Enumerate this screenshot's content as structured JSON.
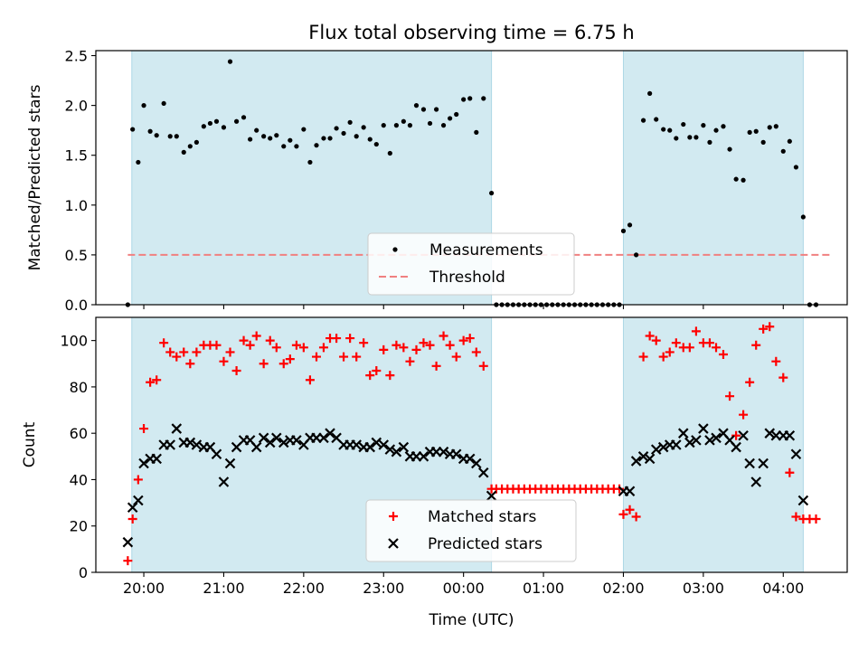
{
  "chart_data": {
    "title": "Flux total observing time = 6.75 h",
    "xlabel": "Time (UTC)",
    "x_unit": "hours UTC, continuing past midnight (24.0 = 00:00 next day)",
    "xlim": [
      19.4,
      28.8
    ],
    "xticks": [
      {
        "value": 20,
        "label": "20:00"
      },
      {
        "value": 21,
        "label": "21:00"
      },
      {
        "value": 22,
        "label": "22:00"
      },
      {
        "value": 23,
        "label": "23:00"
      },
      {
        "value": 24,
        "label": "00:00"
      },
      {
        "value": 25,
        "label": "01:00"
      },
      {
        "value": 26,
        "label": "02:00"
      },
      {
        "value": 27,
        "label": "03:00"
      },
      {
        "value": 28,
        "label": "04:00"
      }
    ],
    "observing_windows": [
      [
        19.85,
        24.35
      ],
      [
        26.0,
        28.25
      ]
    ],
    "window_color": "#add8e6",
    "panels": [
      {
        "type": "scatter",
        "ylabel": "Matched/Predicted stars",
        "ylim": [
          0,
          2.55
        ],
        "yticks": [
          0.0,
          0.5,
          1.0,
          1.5,
          2.0,
          2.5
        ],
        "ytick_labels": [
          "0.0",
          "0.5",
          "1.0",
          "1.5",
          "2.0",
          "2.5"
        ],
        "legend_position": "lower center",
        "threshold": {
          "name": "Threshold",
          "value": 0.5,
          "x_range": [
            19.8,
            28.6
          ],
          "color": "#f08080",
          "style": "dashed"
        },
        "series": [
          {
            "name": "Measurements",
            "marker": "dot",
            "color": "#000000",
            "x": [
              19.8,
              19.86,
              19.93,
              20.0,
              20.08,
              20.16,
              20.25,
              20.33,
              20.41,
              20.5,
              20.58,
              20.66,
              20.75,
              20.83,
              20.91,
              21.0,
              21.08,
              21.16,
              21.25,
              21.33,
              21.41,
              21.5,
              21.58,
              21.66,
              21.75,
              21.83,
              21.91,
              22.0,
              22.08,
              22.16,
              22.25,
              22.33,
              22.41,
              22.5,
              22.58,
              22.66,
              22.75,
              22.83,
              22.91,
              23.0,
              23.08,
              23.16,
              23.25,
              23.33,
              23.41,
              23.5,
              23.58,
              23.66,
              23.75,
              23.83,
              23.91,
              24.0,
              24.08,
              24.16,
              24.25,
              24.35,
              24.41,
              24.48,
              24.55,
              24.62,
              24.69,
              24.76,
              24.83,
              24.9,
              24.97,
              25.04,
              25.11,
              25.18,
              25.25,
              25.32,
              25.39,
              25.46,
              25.53,
              25.6,
              25.67,
              25.74,
              25.81,
              25.88,
              25.95,
              26.0,
              26.08,
              26.16,
              26.25,
              26.33,
              26.41,
              26.5,
              26.58,
              26.66,
              26.75,
              26.83,
              26.91,
              27.0,
              27.08,
              27.16,
              27.25,
              27.33,
              27.41,
              27.5,
              27.58,
              27.66,
              27.75,
              27.83,
              27.91,
              28.0,
              28.08,
              28.16,
              28.25,
              28.33,
              28.41
            ],
            "y": [
              0,
              1.76,
              1.43,
              2.0,
              1.74,
              1.7,
              2.02,
              1.69,
              1.69,
              1.53,
              1.59,
              1.63,
              1.79,
              1.82,
              1.84,
              1.78,
              2.44,
              1.84,
              1.88,
              1.66,
              1.75,
              1.69,
              1.67,
              1.7,
              1.59,
              1.65,
              1.59,
              1.76,
              1.43,
              1.6,
              1.67,
              1.67,
              1.77,
              1.72,
              1.83,
              1.69,
              1.78,
              1.66,
              1.61,
              1.8,
              1.52,
              1.8,
              1.84,
              1.8,
              2.0,
              1.96,
              1.82,
              1.96,
              1.8,
              1.87,
              1.91,
              2.06,
              2.07,
              1.73,
              2.07,
              1.12,
              0,
              0,
              0,
              0,
              0,
              0,
              0,
              0,
              0,
              0,
              0,
              0,
              0,
              0,
              0,
              0,
              0,
              0,
              0,
              0,
              0,
              0,
              0,
              0.74,
              0.8,
              0.5,
              1.85,
              2.12,
              1.86,
              1.76,
              1.75,
              1.67,
              1.81,
              1.68,
              1.68,
              1.8,
              1.63,
              1.75,
              1.79,
              1.56,
              1.26,
              1.25,
              1.73,
              1.74,
              1.63,
              1.78,
              1.79,
              1.54,
              1.64,
              1.38,
              0.88,
              0,
              0
            ]
          }
        ]
      },
      {
        "type": "scatter",
        "ylabel": "Count",
        "ylim": [
          0,
          110
        ],
        "yticks": [
          0,
          20,
          40,
          60,
          80,
          100
        ],
        "ytick_labels": [
          "0",
          "20",
          "40",
          "60",
          "80",
          "100"
        ],
        "legend_position": "lower center",
        "series": [
          {
            "name": "Matched stars",
            "marker": "plus",
            "color": "#ff0000",
            "x": [
              19.8,
              19.86,
              19.93,
              20.0,
              20.08,
              20.16,
              20.25,
              20.33,
              20.41,
              20.5,
              20.58,
              20.66,
              20.75,
              20.83,
              20.91,
              21.0,
              21.08,
              21.16,
              21.25,
              21.33,
              21.41,
              21.5,
              21.58,
              21.66,
              21.75,
              21.83,
              21.91,
              22.0,
              22.08,
              22.16,
              22.25,
              22.33,
              22.41,
              22.5,
              22.58,
              22.66,
              22.75,
              22.83,
              22.91,
              23.0,
              23.08,
              23.16,
              23.25,
              23.33,
              23.41,
              23.5,
              23.58,
              23.66,
              23.75,
              23.83,
              23.91,
              24.0,
              24.08,
              24.16,
              24.25,
              24.35,
              24.41,
              24.48,
              24.55,
              24.62,
              24.69,
              24.76,
              24.83,
              24.9,
              24.97,
              25.04,
              25.11,
              25.18,
              25.25,
              25.32,
              25.39,
              25.46,
              25.53,
              25.6,
              25.67,
              25.74,
              25.81,
              25.88,
              25.95,
              26.0,
              26.08,
              26.16,
              26.25,
              26.33,
              26.41,
              26.5,
              26.58,
              26.66,
              26.75,
              26.83,
              26.91,
              27.0,
              27.08,
              27.16,
              27.25,
              27.33,
              27.41,
              27.5,
              27.58,
              27.66,
              27.75,
              27.83,
              27.91,
              28.0,
              28.08,
              28.16,
              28.25,
              28.33,
              28.41
            ],
            "y": [
              5,
              23,
              40,
              62,
              82,
              83,
              99,
              95,
              93,
              95,
              90,
              95,
              98,
              98,
              98,
              91,
              95,
              87,
              100,
              98,
              102,
              90,
              100,
              97,
              90,
              92,
              98,
              97,
              83,
              93,
              97,
              101,
              101,
              93,
              101,
              93,
              99,
              85,
              87,
              96,
              85,
              98,
              97,
              91,
              96,
              99,
              98,
              89,
              102,
              98,
              93,
              100,
              101,
              95,
              89,
              36,
              36,
              36,
              36,
              36,
              36,
              36,
              36,
              36,
              36,
              36,
              36,
              36,
              36,
              36,
              36,
              36,
              36,
              36,
              36,
              36,
              36,
              36,
              36,
              25,
              27,
              24,
              93,
              102,
              100,
              93,
              95,
              99,
              97,
              97,
              104,
              99,
              99,
              97,
              94,
              76,
              59,
              68,
              82,
              98,
              105,
              106,
              91,
              84,
              43,
              24,
              23,
              23,
              23
            ]
          },
          {
            "name": "Predicted stars",
            "marker": "x",
            "color": "#000000",
            "x": [
              19.8,
              19.86,
              19.93,
              20.0,
              20.08,
              20.16,
              20.25,
              20.33,
              20.41,
              20.5,
              20.58,
              20.66,
              20.75,
              20.83,
              20.91,
              21.0,
              21.08,
              21.16,
              21.25,
              21.33,
              21.41,
              21.5,
              21.58,
              21.66,
              21.75,
              21.83,
              21.91,
              22.0,
              22.08,
              22.16,
              22.25,
              22.33,
              22.41,
              22.5,
              22.58,
              22.66,
              22.75,
              22.83,
              22.91,
              23.0,
              23.08,
              23.16,
              23.25,
              23.33,
              23.41,
              23.5,
              23.58,
              23.66,
              23.75,
              23.83,
              23.91,
              24.0,
              24.08,
              24.16,
              24.25,
              24.35,
              26.0,
              26.08,
              26.16,
              26.25,
              26.33,
              26.41,
              26.5,
              26.58,
              26.66,
              26.75,
              26.83,
              26.91,
              27.0,
              27.08,
              27.16,
              27.25,
              27.33,
              27.41,
              27.5,
              27.58,
              27.66,
              27.75,
              27.83,
              27.91,
              28.0,
              28.08,
              28.16,
              28.25
            ],
            "y": [
              13,
              28,
              31,
              47,
              49,
              49,
              55,
              55,
              62,
              56,
              56,
              55,
              54,
              54,
              51,
              39,
              47,
              54,
              57,
              57,
              54,
              58,
              56,
              58,
              56,
              57,
              57,
              55,
              58,
              58,
              58,
              60,
              58,
              55,
              55,
              55,
              54,
              54,
              56,
              55,
              53,
              52,
              54,
              50,
              50,
              50,
              52,
              52,
              52,
              51,
              51,
              49,
              49,
              47,
              43,
              33,
              35,
              35,
              48,
              50,
              49,
              53,
              54,
              55,
              55,
              60,
              56,
              57,
              62,
              57,
              58,
              60,
              57,
              54,
              59,
              47,
              39,
              47,
              60,
              59,
              59,
              59,
              51,
              31
            ]
          }
        ]
      }
    ]
  }
}
